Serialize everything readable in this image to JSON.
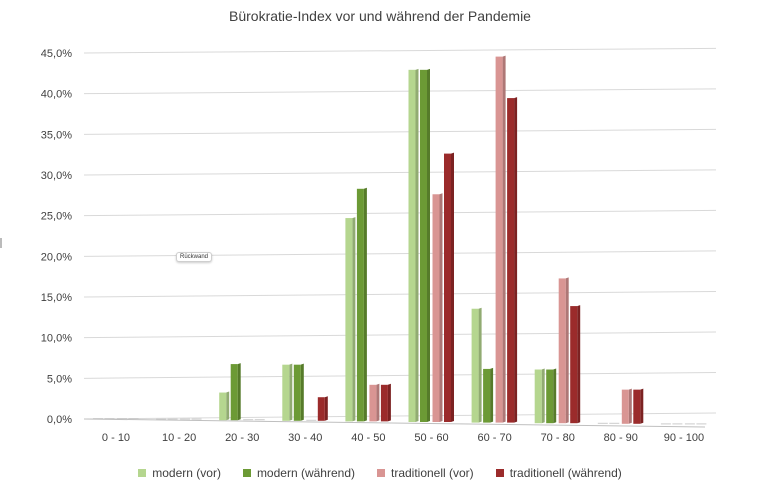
{
  "chart_data": {
    "type": "bar",
    "title": "Bürokratie-Index vor und während der Pandemie",
    "categories": [
      "0 - 10",
      "10 - 20",
      "20 - 30",
      "30 - 40",
      "40 - 50",
      "50 - 60",
      "60 - 70",
      "70 - 80",
      "80 - 90",
      "90 - 100"
    ],
    "y_ticks": [
      "0,0%",
      "5,0%",
      "10,0%",
      "15,0%",
      "20,0%",
      "25,0%",
      "30,0%",
      "35,0%",
      "40,0%",
      "45,0%"
    ],
    "ylim": [
      0,
      45
    ],
    "grid": true,
    "legend_position": "bottom",
    "series": [
      {
        "name": "modern (vor)",
        "color": "#b5d68f",
        "values": [
          0,
          0,
          3.4,
          6.9,
          25.0,
          43.3,
          14.0,
          6.6,
          0,
          0
        ]
      },
      {
        "name": "modern (während)",
        "color": "#6c9a35",
        "values": [
          0,
          0,
          6.9,
          6.9,
          28.6,
          43.3,
          6.6,
          6.6,
          0,
          0
        ]
      },
      {
        "name": "traditionell (vor)",
        "color": "#d99593",
        "values": [
          0,
          0,
          0,
          0,
          4.5,
          28.0,
          45.0,
          17.8,
          4.2,
          0
        ]
      },
      {
        "name": "traditionell (während)",
        "color": "#9b2b2b",
        "values": [
          0,
          0,
          0,
          2.9,
          4.5,
          33.0,
          39.9,
          14.4,
          4.2,
          0
        ]
      }
    ]
  },
  "tooltip": "Rückwand"
}
